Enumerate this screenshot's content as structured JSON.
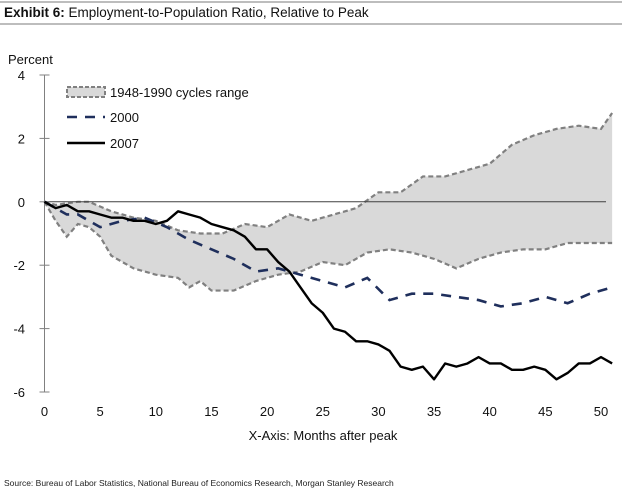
{
  "header": {
    "exhibit_label": "Exhibit 6:",
    "title_text": "Employment-to-Population Ratio, Relative to Peak"
  },
  "footer": {
    "source": "Source: Bureau of Labor Statistics, National Bureau of Economics Research, Morgan Stanley Research"
  },
  "colors": {
    "range_fill": "#d9d9d9",
    "range_border": "#808080",
    "series_2000": "#1f2f5c",
    "series_2007": "#000000",
    "axis": "#808080",
    "zero_line": "#404040"
  },
  "chart_data": {
    "type": "area",
    "title": "Employment-to-Population Ratio, Relative to Peak",
    "ylabel": "Percent",
    "xlabel": "X-Axis: Months after peak",
    "xlim": [
      0,
      51
    ],
    "ylim": [
      -6,
      4
    ],
    "x_ticks": [
      0,
      5,
      10,
      15,
      20,
      25,
      30,
      35,
      40,
      45,
      50
    ],
    "x_tick_labels": [
      "0",
      "5",
      "10",
      "15",
      "20",
      "25",
      "30",
      "35",
      "40",
      "45",
      "50"
    ],
    "y_ticks": [
      4,
      2,
      0,
      -2,
      -4,
      -6
    ],
    "y_tick_labels": [
      "4",
      "2",
      "0",
      "-2",
      "-4",
      "-6"
    ],
    "grid": false,
    "legend_position": "top-left",
    "legend": [
      {
        "key": "range",
        "label": "1948-1990 cycles range",
        "style": "shaded band with dashed border"
      },
      {
        "key": "s2000",
        "label": "2000",
        "style": "dashed line"
      },
      {
        "key": "s2007",
        "label": "2007",
        "style": "solid line"
      }
    ],
    "range_band": {
      "name": "1948-1990 cycles range",
      "upper": {
        "x": [
          0,
          1,
          3,
          4,
          6,
          8,
          10,
          12,
          14,
          16,
          18,
          20,
          22,
          24,
          26,
          28,
          30,
          32,
          34,
          36,
          38,
          40,
          42,
          44,
          46,
          48,
          50,
          51
        ],
        "y": [
          0,
          -0.1,
          0,
          0,
          -0.3,
          -0.5,
          -0.6,
          -0.9,
          -1.0,
          -1.0,
          -0.7,
          -0.8,
          -0.4,
          -0.6,
          -0.4,
          -0.2,
          0.3,
          0.3,
          0.8,
          0.8,
          1.0,
          1.2,
          1.8,
          2.1,
          2.3,
          2.4,
          2.3,
          2.8
        ]
      },
      "lower": {
        "x": [
          0,
          1,
          2,
          3,
          4,
          5,
          6,
          8,
          10,
          12,
          13,
          14,
          15,
          17,
          19,
          21,
          23,
          25,
          27,
          29,
          31,
          33,
          35,
          37,
          39,
          41,
          43,
          45,
          47,
          49,
          51
        ],
        "y": [
          0,
          -0.6,
          -1.1,
          -0.7,
          -0.8,
          -1.1,
          -1.7,
          -2.1,
          -2.3,
          -2.4,
          -2.7,
          -2.5,
          -2.8,
          -2.8,
          -2.5,
          -2.3,
          -2.2,
          -1.9,
          -2.0,
          -1.6,
          -1.5,
          -1.6,
          -1.8,
          -2.1,
          -1.8,
          -1.6,
          -1.5,
          -1.5,
          -1.3,
          -1.3,
          -1.3
        ]
      }
    },
    "series": [
      {
        "name": "2000",
        "x": [
          0,
          2,
          3,
          5,
          7,
          9,
          11,
          13,
          15,
          17,
          19,
          21,
          23,
          25,
          27,
          29,
          31,
          33,
          35,
          37,
          39,
          41,
          43,
          45,
          47,
          49,
          51
        ],
        "values": [
          0,
          -0.4,
          -0.4,
          -0.8,
          -0.6,
          -0.5,
          -0.8,
          -1.2,
          -1.5,
          -1.8,
          -2.2,
          -2.1,
          -2.3,
          -2.5,
          -2.7,
          -2.4,
          -3.1,
          -2.9,
          -2.9,
          -3.0,
          -3.1,
          -3.3,
          -3.2,
          -3.0,
          -3.2,
          -2.9,
          -2.7
        ]
      },
      {
        "name": "2007",
        "x": [
          0,
          1,
          2,
          3,
          4,
          5,
          6,
          7,
          8,
          9,
          10,
          11,
          12,
          13,
          14,
          15,
          16,
          17,
          18,
          19,
          20,
          21,
          22,
          23,
          24,
          25,
          26,
          27,
          28,
          29,
          30,
          31,
          32,
          33,
          34,
          35,
          36,
          37,
          38,
          39,
          40,
          41,
          42,
          43,
          44,
          45,
          46,
          47,
          48,
          49,
          50,
          51
        ],
        "values": [
          0,
          -0.2,
          -0.1,
          -0.3,
          -0.3,
          -0.4,
          -0.5,
          -0.5,
          -0.6,
          -0.6,
          -0.7,
          -0.6,
          -0.3,
          -0.4,
          -0.5,
          -0.7,
          -0.8,
          -0.9,
          -1.1,
          -1.5,
          -1.5,
          -1.9,
          -2.2,
          -2.7,
          -3.2,
          -3.5,
          -4.0,
          -4.1,
          -4.4,
          -4.4,
          -4.5,
          -4.7,
          -5.2,
          -5.3,
          -5.2,
          -5.6,
          -5.1,
          -5.2,
          -5.1,
          -4.9,
          -5.1,
          -5.1,
          -5.3,
          -5.3,
          -5.2,
          -5.3,
          -5.6,
          -5.4,
          -5.1,
          -5.1,
          -4.9,
          -5.1
        ]
      }
    ]
  }
}
